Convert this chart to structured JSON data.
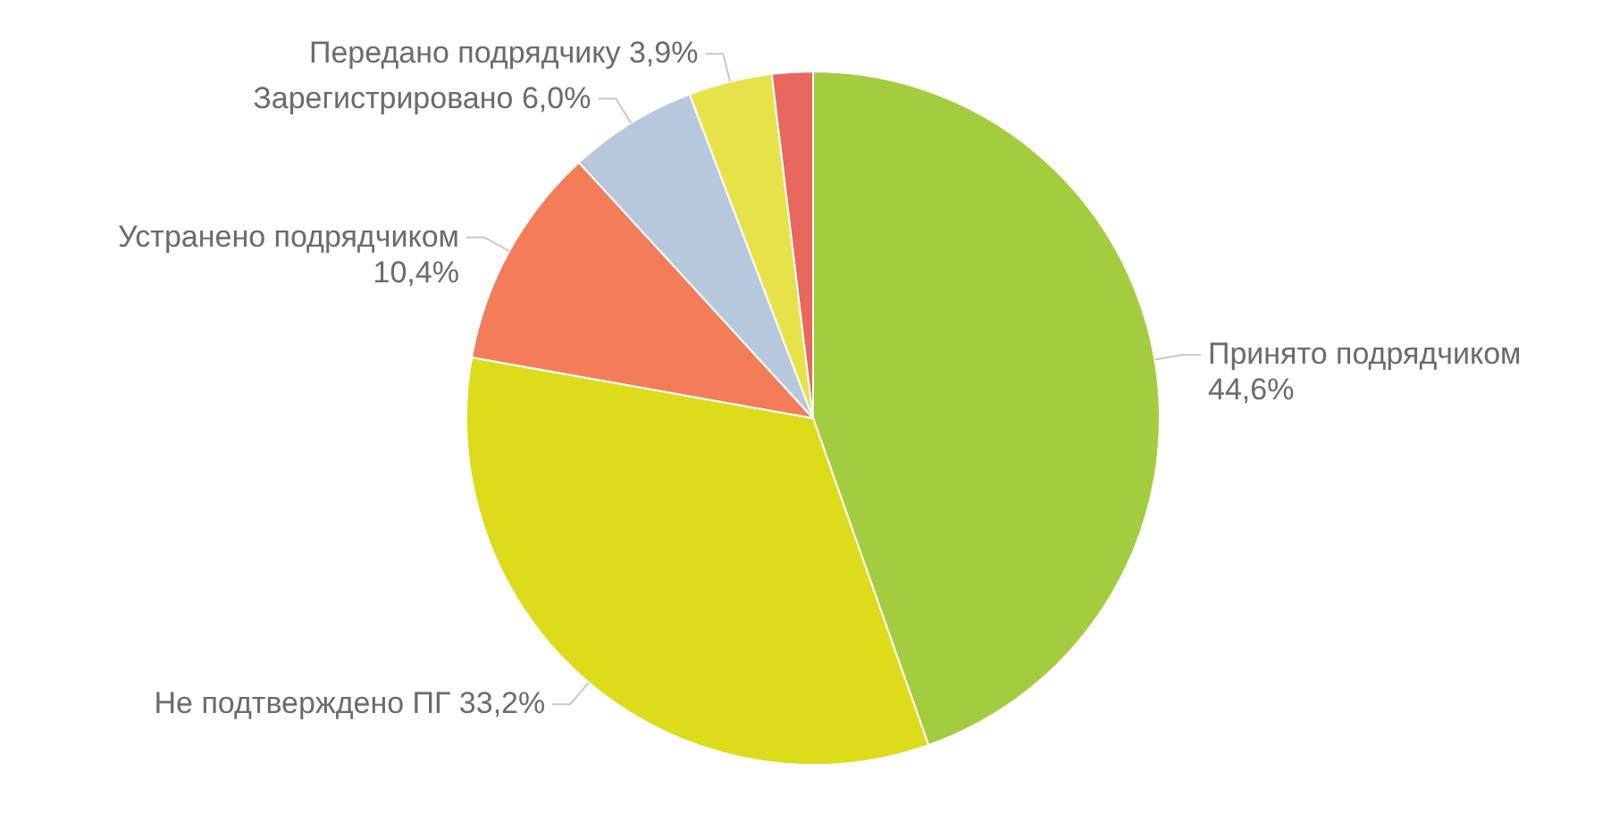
{
  "chart_data": {
    "type": "pie",
    "categories": [
      "Принято подрядчиком",
      "Не подтверждено ПГ",
      "Устранено подрядчиком",
      "Зарегистрировано",
      "Передано подрядчику",
      null
    ],
    "values": [
      44.6,
      33.2,
      10.4,
      6.0,
      3.9,
      1.9
    ],
    "colors": [
      "#a3cd3f",
      "#dcdc1a",
      "#f27d58",
      "#b8c8dc",
      "#e6e34a",
      "#e8675f"
    ],
    "value_labels": [
      "44,6%",
      "33,2%",
      "10,4%",
      "6,0%",
      "3,9%",
      null
    ]
  }
}
